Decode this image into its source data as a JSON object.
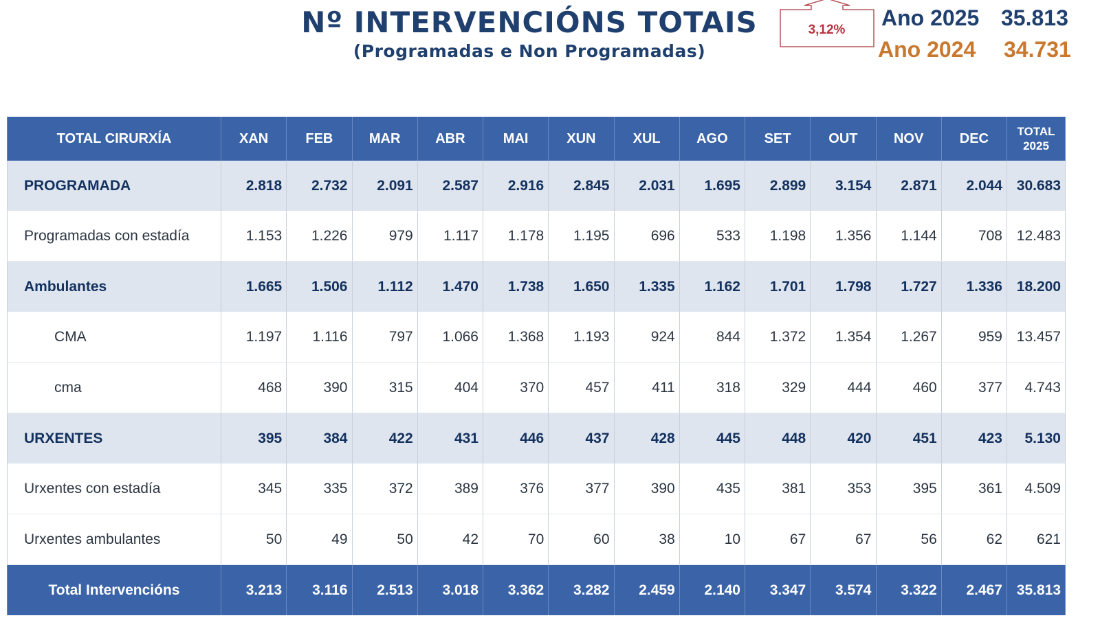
{
  "header": {
    "title": "Nº INTERVENCIÓNS TOTAIS",
    "subtitle": "(Programadas e Non Programadas)",
    "change": {
      "value": "3,12%",
      "icon": "up-arrow-icon",
      "color": "#b5333c"
    },
    "year_current": {
      "label": "Ano 2025",
      "value": "35.813",
      "color": "#1f3f6e"
    },
    "year_previous": {
      "label": "Ano 2024",
      "value": "34.731",
      "color": "#c9782f"
    }
  },
  "table": {
    "columns": [
      "TOTAL CIRURXÍA",
      "XAN",
      "FEB",
      "MAR",
      "ABR",
      "MAI",
      "XUN",
      "XUL",
      "AGO",
      "SET",
      "OUT",
      "NOV",
      "DEC",
      "TOTAL 2025"
    ],
    "rows": [
      {
        "label": "PROGRAMADA",
        "style": "shaded",
        "values": [
          "2.818",
          "2.732",
          "2.091",
          "2.587",
          "2.916",
          "2.845",
          "2.031",
          "1.695",
          "2.899",
          "3.154",
          "2.871",
          "2.044",
          "30.683"
        ]
      },
      {
        "label": "Programadas con estadía",
        "style": "plain",
        "values": [
          "1.153",
          "1.226",
          "979",
          "1.117",
          "1.178",
          "1.195",
          "696",
          "533",
          "1.198",
          "1.356",
          "1.144",
          "708",
          "12.483"
        ]
      },
      {
        "label": "Ambulantes",
        "style": "shaded",
        "values": [
          "1.665",
          "1.506",
          "1.112",
          "1.470",
          "1.738",
          "1.650",
          "1.335",
          "1.162",
          "1.701",
          "1.798",
          "1.727",
          "1.336",
          "18.200"
        ]
      },
      {
        "label": "CMA",
        "style": "indent",
        "values": [
          "1.197",
          "1.116",
          "797",
          "1.066",
          "1.368",
          "1.193",
          "924",
          "844",
          "1.372",
          "1.354",
          "1.267",
          "959",
          "13.457"
        ]
      },
      {
        "label": "cma",
        "style": "indent",
        "values": [
          "468",
          "390",
          "315",
          "404",
          "370",
          "457",
          "411",
          "318",
          "329",
          "444",
          "460",
          "377",
          "4.743"
        ]
      },
      {
        "label": "URXENTES",
        "style": "shaded",
        "values": [
          "395",
          "384",
          "422",
          "431",
          "446",
          "437",
          "428",
          "445",
          "448",
          "420",
          "451",
          "423",
          "5.130"
        ]
      },
      {
        "label": "Urxentes con estadía",
        "style": "plain",
        "values": [
          "345",
          "335",
          "372",
          "389",
          "376",
          "377",
          "390",
          "435",
          "381",
          "353",
          "395",
          "361",
          "4.509"
        ]
      },
      {
        "label": "Urxentes ambulantes",
        "style": "plain",
        "values": [
          "50",
          "49",
          "50",
          "42",
          "70",
          "60",
          "38",
          "10",
          "67",
          "67",
          "56",
          "62",
          "621"
        ]
      },
      {
        "label": "Total Intervencións",
        "style": "total",
        "values": [
          "3.213",
          "3.116",
          "2.513",
          "3.018",
          "3.362",
          "3.282",
          "2.459",
          "2.140",
          "3.347",
          "3.574",
          "3.322",
          "2.467",
          "35.813"
        ]
      }
    ]
  }
}
